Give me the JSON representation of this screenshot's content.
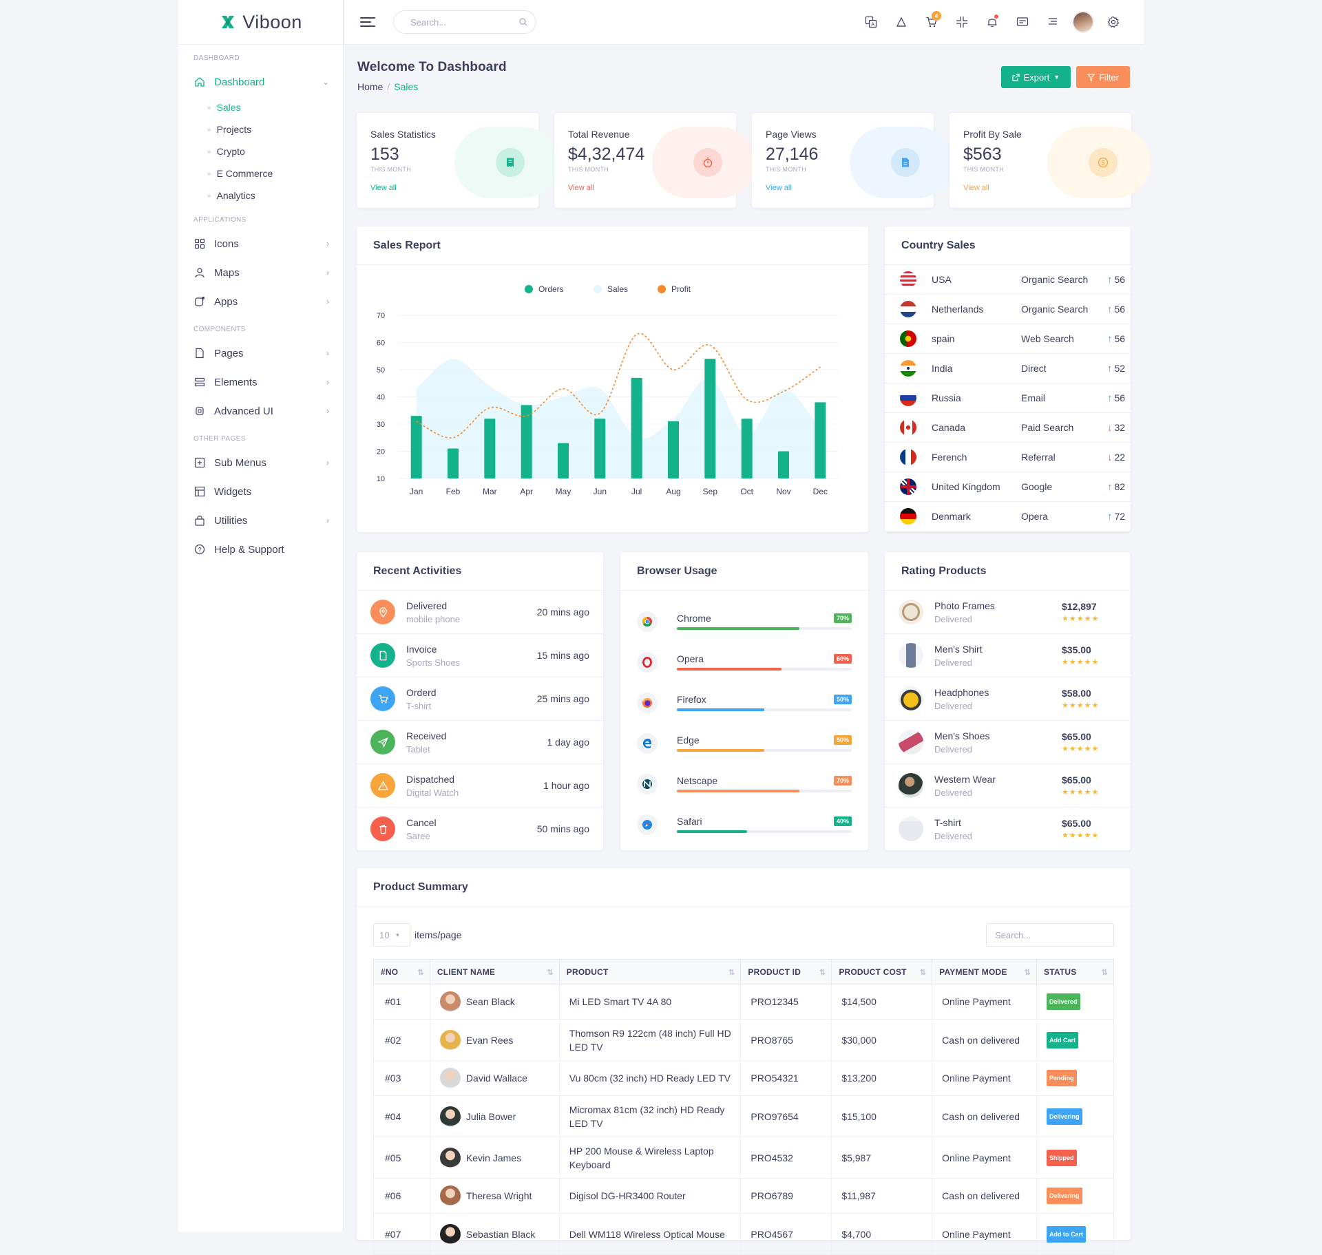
{
  "brand": {
    "name": "Viboon"
  },
  "sidebar": {
    "sections": {
      "dashboard": "DASHBOARD",
      "applications": "APPLICATIONS",
      "components": "COMPONENTS",
      "other": "OTHER PAGES"
    },
    "dashboard_label": "Dashboard",
    "dashboard_sub": [
      "Sales",
      "Projects",
      "Crypto",
      "E Commerce",
      "Analytics"
    ],
    "applications": [
      "Icons",
      "Maps",
      "Apps"
    ],
    "components": [
      "Pages",
      "Elements",
      "Advanced UI"
    ],
    "other": [
      "Sub Menus",
      "Widgets",
      "Utilities",
      "Help & Support"
    ]
  },
  "topbar": {
    "search_placeholder": "Search...",
    "cart_count": "4"
  },
  "page": {
    "title": "Welcome To Dashboard",
    "crumb_home": "Home",
    "crumb_sep": "/",
    "crumb_current": "Sales",
    "export_label": "Export",
    "filter_label": "Filter"
  },
  "stats": [
    {
      "label": "Sales Statistics",
      "value": "153",
      "sub": "THIS MONTH",
      "link": "View all",
      "color": "#13b28a"
    },
    {
      "label": "Total Revenue",
      "value": "$4,32,474",
      "sub": "THIS MONTH",
      "link": "View all",
      "color": "#f5604c"
    },
    {
      "label": "Page Views",
      "value": "27,146",
      "sub": "THIS MONTH",
      "link": "View all",
      "color": "#3da5f4"
    },
    {
      "label": "Profit By Sale",
      "value": "$563",
      "sub": "THIS MONTH",
      "link": "View all",
      "color": "#f7a53a"
    }
  ],
  "sales_report": {
    "title": "Sales Report"
  },
  "chart_data": {
    "type": "bar",
    "title": "Sales Report",
    "categories": [
      "Jan",
      "Feb",
      "Mar",
      "Apr",
      "May",
      "Jun",
      "Jul",
      "Aug",
      "Sep",
      "Oct",
      "Nov",
      "Dec"
    ],
    "ylim": [
      10,
      70
    ],
    "yticks": [
      10,
      20,
      30,
      40,
      50,
      60,
      70
    ],
    "legend_position": "top-center",
    "grid": true,
    "series": [
      {
        "name": "Orders",
        "type": "bar",
        "color": "#13b28a",
        "values": [
          33,
          21,
          32,
          37,
          23,
          32,
          47,
          31,
          54,
          32,
          20,
          38
        ]
      },
      {
        "name": "Sales",
        "type": "area",
        "color": "#e3f6fd",
        "values": [
          43,
          54,
          44,
          37,
          40,
          43,
          25,
          32,
          47,
          26,
          43,
          28
        ]
      },
      {
        "name": "Profit",
        "type": "line",
        "color": "#f7892b",
        "values": [
          31,
          25,
          36,
          33,
          43,
          34,
          63,
          50,
          59,
          39,
          42,
          51
        ]
      }
    ]
  },
  "country_sales": {
    "title": "Country Sales",
    "rows": [
      {
        "country": "USA",
        "source": "Organic Search",
        "value": "56",
        "dir": "up"
      },
      {
        "country": "Netherlands",
        "source": "Organic Search",
        "value": "56",
        "dir": "up"
      },
      {
        "country": "spain",
        "source": "Web Search",
        "value": "56",
        "dir": "up"
      },
      {
        "country": "India",
        "source": "Direct",
        "value": "52",
        "dir": "up"
      },
      {
        "country": "Russia",
        "source": "Email",
        "value": "56",
        "dir": "up"
      },
      {
        "country": "Canada",
        "source": "Paid Search",
        "value": "32",
        "dir": "down"
      },
      {
        "country": "Ferench",
        "source": "Referral",
        "value": "22",
        "dir": "down"
      },
      {
        "country": "United Kingdom",
        "source": "Google",
        "value": "82",
        "dir": "up"
      },
      {
        "country": "Denmark",
        "source": "Opera",
        "value": "72",
        "dir": "up"
      }
    ]
  },
  "activities": {
    "title": "Recent Activities",
    "rows": [
      {
        "title": "Delivered",
        "sub": "mobile phone",
        "time": "20 mins ago",
        "icon": "map-pin-icon",
        "color": "#f98e5a"
      },
      {
        "title": "Invoice",
        "sub": "Sports Shoes",
        "time": "15 mins ago",
        "icon": "file-icon",
        "color": "#13b28a"
      },
      {
        "title": "Orderd",
        "sub": "T-shirt",
        "time": "25 mins ago",
        "icon": "cart-icon",
        "color": "#3da5f4"
      },
      {
        "title": "Received",
        "sub": "Tablet",
        "time": "1 day ago",
        "icon": "send-icon",
        "color": "#4cb45a"
      },
      {
        "title": "Dispatched",
        "sub": "Digital Watch",
        "time": "1 hour ago",
        "icon": "alert-icon",
        "color": "#f7a53a"
      },
      {
        "title": "Cancel",
        "sub": "Saree",
        "time": "50 mins ago",
        "icon": "trash-icon",
        "color": "#f5604c"
      }
    ]
  },
  "browser": {
    "title": "Browser Usage",
    "rows": [
      {
        "name": "Chrome",
        "pct": "70%",
        "value": 70,
        "color": "#4cb45a",
        "icon": "chrome-icon"
      },
      {
        "name": "Opera",
        "pct": "60%",
        "value": 60,
        "color": "#f5604c",
        "icon": "opera-icon"
      },
      {
        "name": "Firefox",
        "pct": "50%",
        "value": 50,
        "color": "#3da5f4",
        "icon": "firefox-icon"
      },
      {
        "name": "Edge",
        "pct": "50%",
        "value": 50,
        "color": "#f7a53a",
        "icon": "edge-icon"
      },
      {
        "name": "Netscape",
        "pct": "70%",
        "value": 70,
        "color": "#f98e5a",
        "icon": "netscape-icon"
      },
      {
        "name": "Safari",
        "pct": "40%",
        "value": 40,
        "color": "#13b28a",
        "icon": "safari-icon"
      }
    ]
  },
  "rating": {
    "title": "Rating Products",
    "rows": [
      {
        "name": "Photo Frames",
        "sub": "Delivered",
        "price": "$12,897",
        "stars": "★★★★★"
      },
      {
        "name": "Men's Shirt",
        "sub": "Delivered",
        "price": "$35.00",
        "stars": "★★★★★"
      },
      {
        "name": "Headphones",
        "sub": "Delivered",
        "price": "$58.00",
        "stars": "★★★★★"
      },
      {
        "name": "Men's Shoes",
        "sub": "Delivered",
        "price": "$65.00",
        "stars": "★★★★★"
      },
      {
        "name": "Western Wear",
        "sub": "Delivered",
        "price": "$65.00",
        "stars": "★★★★★"
      },
      {
        "name": "T-shirt",
        "sub": "Delivered",
        "price": "$65.00",
        "stars": "★★★★★"
      }
    ]
  },
  "summary": {
    "title": "Product Summary",
    "page_size": "10",
    "items_label": "items/page",
    "search_placeholder": "Search...",
    "headers": [
      "#NO",
      "CLIENT NAME",
      "PRODUCT",
      "PRODUCT ID",
      "PRODUCT COST",
      "PAYMENT MODE",
      "STATUS"
    ],
    "rows": [
      {
        "no": "#01",
        "client": "Sean Black",
        "product": "Mi LED Smart TV 4A 80",
        "pid": "PRO12345",
        "cost": "$14,500",
        "mode": "Online Payment",
        "status": "Delivered",
        "color": "#4cb45a"
      },
      {
        "no": "#02",
        "client": "Evan Rees",
        "product": "Thomson R9 122cm (48 inch) Full HD LED TV",
        "pid": "PRO8765",
        "cost": "$30,000",
        "mode": "Cash on delivered",
        "status": "Add Cart",
        "color": "#13b28a"
      },
      {
        "no": "#03",
        "client": "David Wallace",
        "product": "Vu 80cm (32 inch) HD Ready LED TV",
        "pid": "PRO54321",
        "cost": "$13,200",
        "mode": "Online Payment",
        "status": "Pending",
        "color": "#f98e5a"
      },
      {
        "no": "#04",
        "client": "Julia Bower",
        "product": "Micromax 81cm (32 inch) HD Ready LED TV",
        "pid": "PRO97654",
        "cost": "$15,100",
        "mode": "Cash on delivered",
        "status": "Delivering",
        "color": "#3da5f4"
      },
      {
        "no": "#05",
        "client": "Kevin James",
        "product": "HP 200 Mouse & Wireless Laptop Keyboard",
        "pid": "PRO4532",
        "cost": "$5,987",
        "mode": "Online Payment",
        "status": "Shipped",
        "color": "#f5604c"
      },
      {
        "no": "#06",
        "client": "Theresa Wright",
        "product": "Digisol DG-HR3400 Router",
        "pid": "PRO6789",
        "cost": "$11,987",
        "mode": "Cash on delivered",
        "status": "Delivering",
        "color": "#f98e5a"
      },
      {
        "no": "#07",
        "client": "Sebastian Black",
        "product": "Dell WM118 Wireless Optical Mouse",
        "pid": "PRO4567",
        "cost": "$4,700",
        "mode": "Online Payment",
        "status": "Add to Cart",
        "color": "#3da5f4"
      }
    ]
  }
}
